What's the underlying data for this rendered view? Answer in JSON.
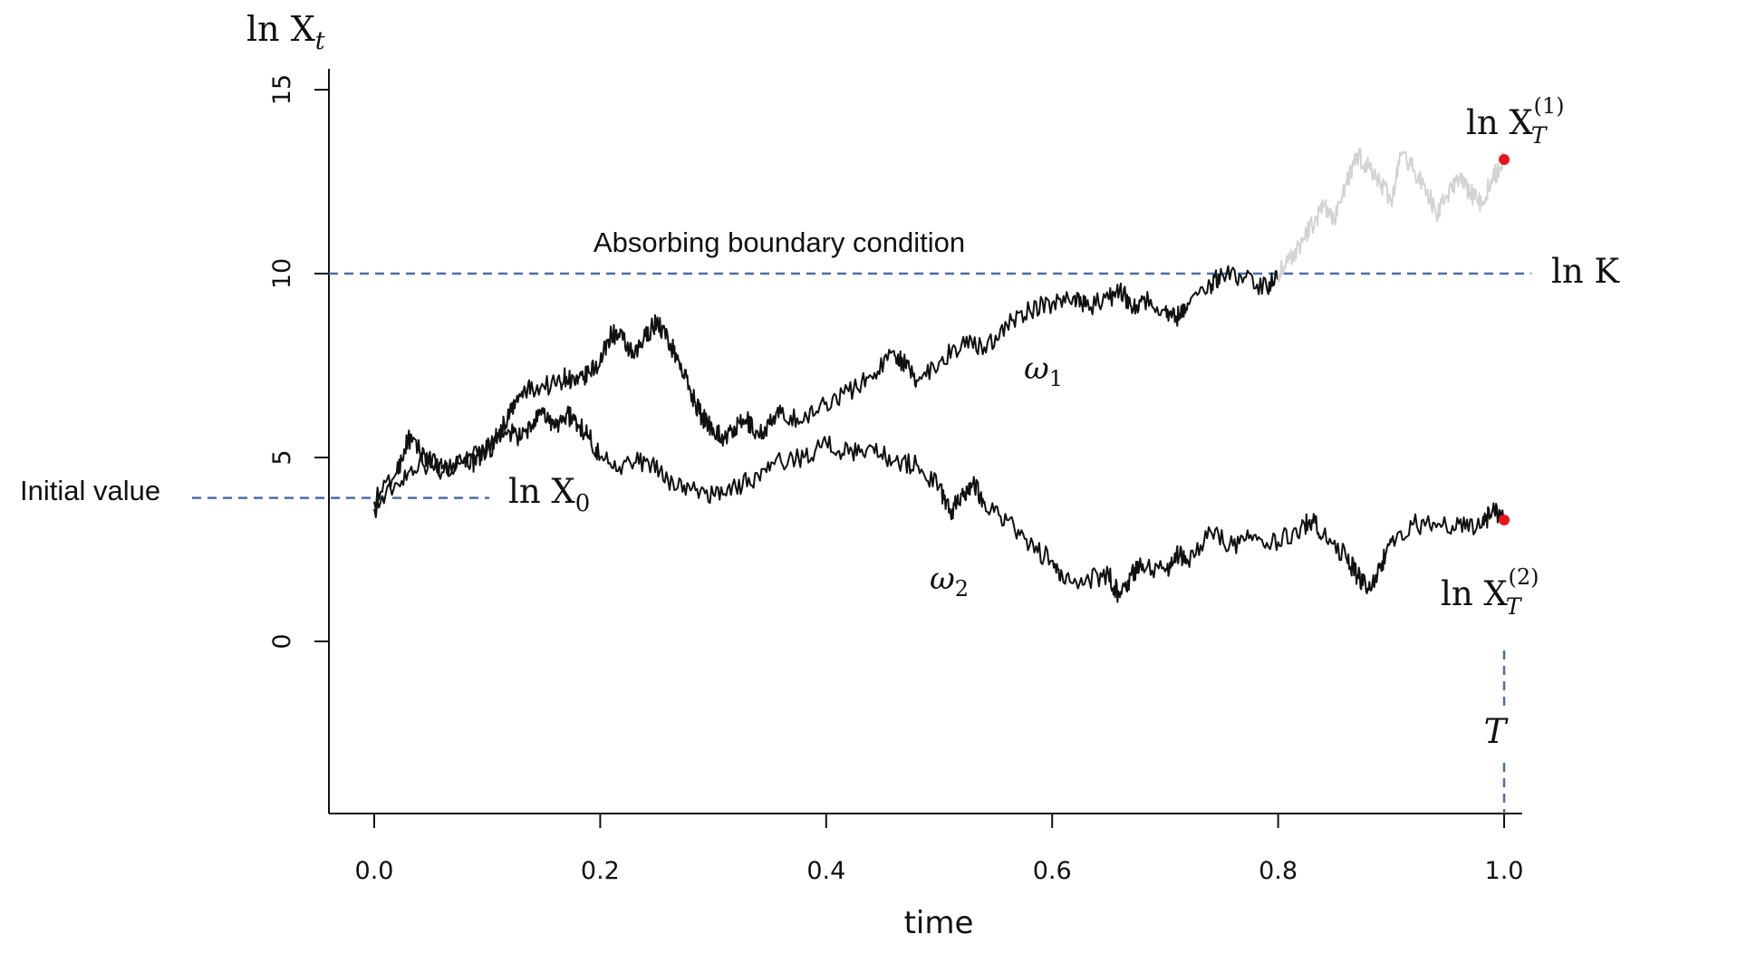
{
  "chart_data": {
    "type": "line",
    "title": "",
    "xlabel": "time",
    "ylabel": "ln X",
    "ylabel_sub": "t",
    "xlim": [
      -0.2,
      1.11
    ],
    "ylim": [
      -4.8,
      15.6
    ],
    "xticks": [
      "0.0",
      "0.2",
      "0.4",
      "0.6",
      "0.8",
      "1.0"
    ],
    "yticks": [
      "0",
      "5",
      "10",
      "15"
    ],
    "boundary": {
      "y": 10,
      "label": "Absorbing boundary condition",
      "level_label": "ln K",
      "color": "#4a6fa5"
    },
    "initial": {
      "y": 3.9,
      "label": "Initial value",
      "value_label": "ln X",
      "value_sub": "0"
    },
    "terminal_marker": {
      "x": 1.0,
      "label": "T"
    },
    "endpoint_color": "#e8141c",
    "series": [
      {
        "name": "ω1",
        "name_base": "ω",
        "name_sub": "1",
        "color": "#111111",
        "absorbed_color": "#d3d3d3",
        "absorbed_after_x": 0.8,
        "points": [
          [
            0.0,
            3.6
          ],
          [
            0.02,
            4.3
          ],
          [
            0.04,
            4.9
          ],
          [
            0.06,
            4.6
          ],
          [
            0.08,
            5.0
          ],
          [
            0.09,
            4.8
          ],
          [
            0.1,
            5.3
          ],
          [
            0.11,
            5.6
          ],
          [
            0.12,
            6.2
          ],
          [
            0.13,
            6.7
          ],
          [
            0.14,
            6.9
          ],
          [
            0.16,
            7.0
          ],
          [
            0.17,
            7.2
          ],
          [
            0.18,
            7.0
          ],
          [
            0.19,
            7.3
          ],
          [
            0.2,
            7.6
          ],
          [
            0.21,
            8.4
          ],
          [
            0.22,
            8.2
          ],
          [
            0.23,
            7.7
          ],
          [
            0.24,
            8.3
          ],
          [
            0.25,
            8.7
          ],
          [
            0.26,
            8.2
          ],
          [
            0.27,
            7.6
          ],
          [
            0.28,
            6.8
          ],
          [
            0.29,
            6.1
          ],
          [
            0.3,
            5.8
          ],
          [
            0.31,
            5.5
          ],
          [
            0.32,
            5.8
          ],
          [
            0.33,
            6.0
          ],
          [
            0.34,
            5.6
          ],
          [
            0.35,
            5.9
          ],
          [
            0.36,
            6.2
          ],
          [
            0.38,
            6.0
          ],
          [
            0.4,
            6.5
          ],
          [
            0.42,
            6.8
          ],
          [
            0.44,
            7.2
          ],
          [
            0.46,
            7.9
          ],
          [
            0.47,
            7.5
          ],
          [
            0.48,
            7.1
          ],
          [
            0.5,
            7.6
          ],
          [
            0.52,
            8.1
          ],
          [
            0.54,
            8.0
          ],
          [
            0.56,
            8.6
          ],
          [
            0.58,
            9.0
          ],
          [
            0.6,
            9.2
          ],
          [
            0.62,
            9.4
          ],
          [
            0.63,
            9.1
          ],
          [
            0.65,
            9.3
          ],
          [
            0.66,
            9.6
          ],
          [
            0.67,
            9.1
          ],
          [
            0.68,
            9.3
          ],
          [
            0.7,
            9.0
          ],
          [
            0.71,
            8.8
          ],
          [
            0.72,
            9.2
          ],
          [
            0.74,
            9.7
          ],
          [
            0.75,
            10.0
          ],
          [
            0.77,
            9.9
          ],
          [
            0.79,
            9.6
          ],
          [
            0.8,
            10.0
          ],
          [
            0.81,
            10.4
          ],
          [
            0.82,
            10.8
          ],
          [
            0.83,
            11.3
          ],
          [
            0.84,
            11.8
          ],
          [
            0.85,
            11.5
          ],
          [
            0.86,
            12.4
          ],
          [
            0.87,
            13.2
          ],
          [
            0.88,
            12.9
          ],
          [
            0.89,
            12.5
          ],
          [
            0.9,
            12.0
          ],
          [
            0.91,
            13.3
          ],
          [
            0.92,
            12.8
          ],
          [
            0.93,
            12.4
          ],
          [
            0.94,
            11.6
          ],
          [
            0.95,
            12.1
          ],
          [
            0.96,
            12.6
          ],
          [
            0.97,
            12.2
          ],
          [
            0.98,
            11.9
          ],
          [
            0.99,
            12.6
          ],
          [
            1.0,
            13.1
          ]
        ]
      },
      {
        "name": "ω2",
        "name_base": "ω",
        "name_sub": "2",
        "color": "#111111",
        "points": [
          [
            0.0,
            3.8
          ],
          [
            0.02,
            4.6
          ],
          [
            0.03,
            5.5
          ],
          [
            0.04,
            5.2
          ],
          [
            0.05,
            4.9
          ],
          [
            0.06,
            4.7
          ],
          [
            0.08,
            4.9
          ],
          [
            0.1,
            5.2
          ],
          [
            0.12,
            5.7
          ],
          [
            0.13,
            5.5
          ],
          [
            0.14,
            5.9
          ],
          [
            0.15,
            6.2
          ],
          [
            0.16,
            5.8
          ],
          [
            0.17,
            6.2
          ],
          [
            0.18,
            5.9
          ],
          [
            0.19,
            5.6
          ],
          [
            0.2,
            5.0
          ],
          [
            0.22,
            4.8
          ],
          [
            0.24,
            4.9
          ],
          [
            0.26,
            4.4
          ],
          [
            0.28,
            4.1
          ],
          [
            0.3,
            4.0
          ],
          [
            0.32,
            4.2
          ],
          [
            0.34,
            4.5
          ],
          [
            0.36,
            4.9
          ],
          [
            0.38,
            5.0
          ],
          [
            0.4,
            5.4
          ],
          [
            0.42,
            5.1
          ],
          [
            0.44,
            5.3
          ],
          [
            0.46,
            4.9
          ],
          [
            0.48,
            4.8
          ],
          [
            0.5,
            4.2
          ],
          [
            0.51,
            3.5
          ],
          [
            0.52,
            4.0
          ],
          [
            0.53,
            4.3
          ],
          [
            0.54,
            3.8
          ],
          [
            0.56,
            3.3
          ],
          [
            0.58,
            2.6
          ],
          [
            0.6,
            2.2
          ],
          [
            0.61,
            1.6
          ],
          [
            0.63,
            1.7
          ],
          [
            0.65,
            1.8
          ],
          [
            0.66,
            1.2
          ],
          [
            0.67,
            1.8
          ],
          [
            0.68,
            2.1
          ],
          [
            0.7,
            1.9
          ],
          [
            0.71,
            2.4
          ],
          [
            0.72,
            2.2
          ],
          [
            0.74,
            3.0
          ],
          [
            0.76,
            2.6
          ],
          [
            0.78,
            2.9
          ],
          [
            0.8,
            2.7
          ],
          [
            0.82,
            3.1
          ],
          [
            0.83,
            3.3
          ],
          [
            0.84,
            2.9
          ],
          [
            0.86,
            2.3
          ],
          [
            0.87,
            1.8
          ],
          [
            0.88,
            1.4
          ],
          [
            0.89,
            2.0
          ],
          [
            0.9,
            2.7
          ],
          [
            0.92,
            3.2
          ],
          [
            0.94,
            3.1
          ],
          [
            0.96,
            3.2
          ],
          [
            0.98,
            3.1
          ],
          [
            0.99,
            3.6
          ],
          [
            1.0,
            3.3
          ]
        ]
      }
    ],
    "endpoints": [
      {
        "x": 1.0,
        "y": 13.1,
        "label_base": "ln X",
        "label_sub": "T",
        "label_sup": "(1)"
      },
      {
        "x": 1.0,
        "y": 3.3,
        "label_base": "ln X",
        "label_sub": "T",
        "label_sup": "(2)"
      }
    ]
  }
}
